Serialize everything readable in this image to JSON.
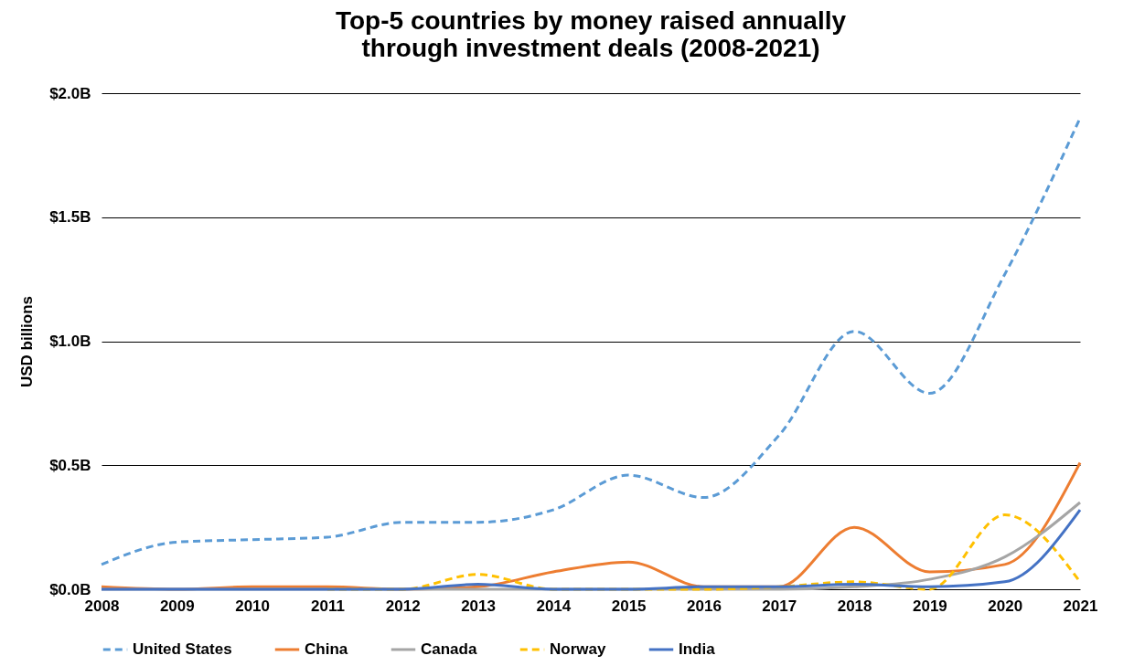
{
  "chart_data": {
    "type": "line",
    "title": "Top-5 countries by money raised annually through investment deals (2008-2021)",
    "ylabel": "USD billions",
    "categories": [
      "2008",
      "2009",
      "2010",
      "2011",
      "2012",
      "2013",
      "2014",
      "2015",
      "2016",
      "2017",
      "2018",
      "2019",
      "2020",
      "2021"
    ],
    "series": [
      {
        "name": "United States",
        "color": "#5b9bd5",
        "line_style": "dashed",
        "values": [
          0.1,
          0.19,
          0.2,
          0.21,
          0.27,
          0.27,
          0.32,
          0.46,
          0.37,
          0.62,
          1.04,
          0.79,
          1.27,
          1.9
        ]
      },
      {
        "name": "China",
        "color": "#ed7d31",
        "line_style": "solid",
        "values": [
          0.01,
          0.0,
          0.01,
          0.01,
          0.0,
          0.01,
          0.07,
          0.11,
          0.01,
          0.01,
          0.25,
          0.07,
          0.1,
          0.51
        ]
      },
      {
        "name": "Canada",
        "color": "#a5a5a5",
        "line_style": "solid",
        "values": [
          0.0,
          0.0,
          0.0,
          0.0,
          0.0,
          0.0,
          0.0,
          0.0,
          0.0,
          0.0,
          0.01,
          0.04,
          0.13,
          0.35
        ]
      },
      {
        "name": "Norway",
        "color": "#ffc000",
        "line_style": "dashed",
        "values": [
          null,
          null,
          null,
          0.0,
          0.0,
          0.06,
          0.0,
          0.0,
          0.0,
          0.01,
          0.03,
          0.0,
          0.3,
          0.03
        ]
      },
      {
        "name": "India",
        "color": "#4472c4",
        "line_style": "solid",
        "values": [
          0.0,
          0.0,
          0.0,
          0.0,
          0.0,
          0.02,
          0.0,
          0.0,
          0.01,
          0.01,
          0.02,
          0.01,
          0.03,
          0.32
        ]
      }
    ],
    "ylim": [
      0,
      2
    ],
    "yticks": [
      {
        "value": 0,
        "label": "$0.0B"
      },
      {
        "value": 0.5,
        "label": "$0.5B"
      },
      {
        "value": 1,
        "label": "$1.0B"
      },
      {
        "value": 1.5,
        "label": "$1.5B"
      },
      {
        "value": 2,
        "label": "$2.0B"
      }
    ],
    "grid": "y",
    "legend": "bottom",
    "marker": "none"
  }
}
